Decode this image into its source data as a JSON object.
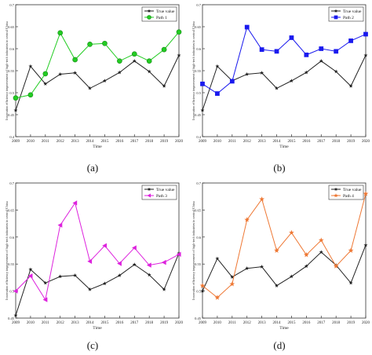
{
  "figure": {
    "captions": [
      "(a)",
      "(b)",
      "(c)",
      "(d)"
    ]
  },
  "chart_data": [
    {
      "type": "line",
      "panel": "(a)",
      "ylabel": "Innovation efficiency improvement of high-tech industries in central China",
      "xlabel": "Time",
      "x": [
        2009,
        2010,
        2011,
        2012,
        2013,
        2014,
        2015,
        2016,
        2017,
        2018,
        2019,
        2020
      ],
      "ylim": [
        0.4,
        0.7
      ],
      "yticks": [
        0.4,
        0.45,
        0.5,
        0.55,
        0.6,
        0.65,
        0.7
      ],
      "legend": "top-right",
      "series": [
        {
          "name": "True value",
          "color": "#222222",
          "marker": "star",
          "values": [
            0.46,
            0.56,
            0.52,
            0.542,
            0.545,
            0.51,
            0.527,
            0.546,
            0.572,
            0.548,
            0.515,
            0.585
          ]
        },
        {
          "name": "Path 1",
          "color": "#22cc22",
          "marker": "circle",
          "values": [
            0.488,
            0.495,
            0.543,
            0.636,
            0.575,
            0.61,
            0.612,
            0.572,
            0.588,
            0.572,
            0.598,
            0.638
          ]
        }
      ]
    },
    {
      "type": "line",
      "panel": "(b)",
      "ylabel": "Innovation efficiency improvement of high-tech industries in central China",
      "xlabel": "Time",
      "x": [
        2009,
        2010,
        2011,
        2012,
        2013,
        2014,
        2015,
        2016,
        2017,
        2018,
        2019,
        2020
      ],
      "ylim": [
        0.4,
        0.7
      ],
      "yticks": [
        0.4,
        0.45,
        0.5,
        0.55,
        0.6,
        0.65,
        0.7
      ],
      "legend": "top-right",
      "series": [
        {
          "name": "True value",
          "color": "#222222",
          "marker": "star",
          "values": [
            0.46,
            0.56,
            0.527,
            0.542,
            0.545,
            0.51,
            0.527,
            0.546,
            0.572,
            0.548,
            0.515,
            0.585
          ]
        },
        {
          "name": "Path 2",
          "color": "#1a1aee",
          "marker": "square",
          "values": [
            0.52,
            0.498,
            0.526,
            0.649,
            0.598,
            0.594,
            0.625,
            0.586,
            0.6,
            0.594,
            0.618,
            0.633
          ]
        }
      ]
    },
    {
      "type": "line",
      "panel": "(c)",
      "ylabel": "Innovation efficiency improvement of high-tech industries in central China",
      "xlabel": "Time",
      "x": [
        2009,
        2010,
        2011,
        2012,
        2013,
        2014,
        2015,
        2016,
        2017,
        2018,
        2019,
        2020
      ],
      "ylim": [
        0.45,
        0.7
      ],
      "yticks": [
        0.45,
        0.5,
        0.55,
        0.6,
        0.65,
        0.7
      ],
      "legend": "top-right",
      "series": [
        {
          "name": "True value",
          "color": "#222222",
          "marker": "star",
          "values": [
            0.455,
            0.54,
            0.515,
            0.527,
            0.529,
            0.503,
            0.514,
            0.529,
            0.549,
            0.53,
            0.503,
            0.57
          ]
        },
        {
          "name": "Path 3",
          "color": "#dd22dd",
          "marker": "triangle-left",
          "values": [
            0.5,
            0.528,
            0.484,
            0.622,
            0.663,
            0.555,
            0.584,
            0.551,
            0.58,
            0.548,
            0.553,
            0.568
          ]
        }
      ]
    },
    {
      "type": "line",
      "panel": "(d)",
      "ylabel": "Innovation efficiency improvement of high-tech industries in central China",
      "xlabel": "Time",
      "x": [
        2009,
        2010,
        2011,
        2012,
        2013,
        2014,
        2015,
        2016,
        2017,
        2018,
        2019,
        2020
      ],
      "ylim": [
        0.45,
        0.7
      ],
      "yticks": [
        0.45,
        0.5,
        0.55,
        0.6,
        0.65,
        0.7
      ],
      "legend": "top-right",
      "series": [
        {
          "name": "True value",
          "color": "#222222",
          "marker": "star",
          "values": [
            0.5,
            0.56,
            0.526,
            0.542,
            0.545,
            0.51,
            0.527,
            0.546,
            0.572,
            0.548,
            0.515,
            0.585
          ]
        },
        {
          "name": "Path 4",
          "color": "#ee7733",
          "marker": "star",
          "values": [
            0.51,
            0.488,
            0.513,
            0.632,
            0.67,
            0.575,
            0.608,
            0.567,
            0.594,
            0.546,
            0.575,
            0.68
          ]
        }
      ]
    }
  ]
}
